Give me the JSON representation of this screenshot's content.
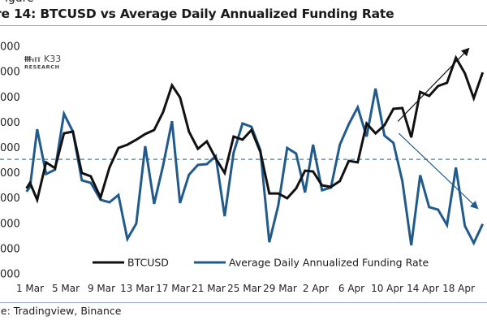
{
  "figure": {
    "top_fragment": "igure",
    "title": "re 14: BTCUSD vs Average Daily Annualized Funding Rate",
    "source": "ce: Tradingview, Binance"
  },
  "logo": {
    "name": "K33",
    "sub": "RESEARCH"
  },
  "colors": {
    "btc": "#111111",
    "funding": "#215b8c",
    "zero_line": "#4d7aa8",
    "rule": "#9aaccc"
  },
  "chart_data": {
    "type": "line",
    "title": "BTCUSD vs Average Daily Annualized Funding Rate",
    "xlabel": "",
    "ylabel": "",
    "y_axis_note": "Left axis tick labels are cropped; only trailing digits '000' visible. Values below are in gridline units (0 = lowest gridline, 9 = highest).",
    "yticks": [
      "000",
      "000",
      "000",
      "000",
      "000",
      "000",
      "000",
      "000",
      "000",
      "000"
    ],
    "ylim": [
      0,
      9
    ],
    "xlim_days": [
      -0.4,
      50.8
    ],
    "x_tick_labels": [
      "1 Mar",
      "5 Mar",
      "9 Mar",
      "13 Mar",
      "17 Mar",
      "21 Mar",
      "25 Mar",
      "29 Mar",
      "2 Apr",
      "6 Apr",
      "10 Apr",
      "14 Apr",
      "18 Apr"
    ],
    "x_tick_days": [
      0,
      4,
      8,
      12,
      16,
      20,
      24,
      28,
      32,
      36,
      40,
      44,
      48
    ],
    "funding_zero_level": 4.53,
    "grid": false,
    "legend": {
      "position": "bottom-center",
      "entries": [
        "BTCUSD",
        "Average Daily Annualized Funding Rate"
      ]
    },
    "series": [
      {
        "name": "BTCUSD",
        "x_days": [
          -0.4,
          0,
          0.8,
          1.8,
          2.8,
          3.8,
          4.8,
          5.8,
          6.8,
          7.9,
          8.9,
          9.9,
          10.9,
          11.9,
          12.9,
          13.9,
          14.9,
          15.9,
          16.8,
          17.8,
          18.8,
          19.8,
          20.8,
          21.8,
          22.8,
          23.8,
          24.8,
          25.8,
          26.8,
          27.8,
          28.8,
          29.8,
          30.8,
          31.7,
          32.7,
          33.7,
          34.7,
          35.7,
          36.7,
          37.7,
          38.7,
          39.7,
          40.7,
          41.7,
          42.7,
          43.7,
          44.7,
          45.7,
          46.7,
          47.7,
          48.7,
          49.7,
          50.7
        ],
        "values": [
          3.38,
          3.6,
          2.93,
          4.41,
          4.18,
          5.56,
          5.63,
          3.99,
          3.86,
          3.02,
          4.21,
          4.98,
          5.11,
          5.31,
          5.53,
          5.69,
          6.4,
          7.46,
          6.98,
          5.63,
          4.95,
          5.24,
          4.57,
          3.99,
          5.43,
          5.31,
          5.69,
          4.82,
          3.18,
          3.18,
          2.99,
          3.38,
          4.08,
          4.05,
          3.5,
          3.44,
          3.67,
          4.47,
          4.41,
          5.95,
          5.56,
          5.88,
          6.53,
          6.56,
          5.4,
          7.2,
          7.04,
          7.43,
          7.56,
          8.55,
          7.94,
          6.95,
          7.97
        ]
      },
      {
        "name": "Average Daily Annualized Funding Rate",
        "x_days": [
          -0.4,
          0,
          0.8,
          1.8,
          2.8,
          3.8,
          4.8,
          5.8,
          6.8,
          7.9,
          8.9,
          9.9,
          10.9,
          11.9,
          12.9,
          13.9,
          14.9,
          15.9,
          16.8,
          17.8,
          18.8,
          19.8,
          20.8,
          21.8,
          22.8,
          23.8,
          24.8,
          25.8,
          26.8,
          27.8,
          28.8,
          29.8,
          30.8,
          31.7,
          32.7,
          33.7,
          34.7,
          35.7,
          36.7,
          37.7,
          38.7,
          39.7,
          40.7,
          41.7,
          42.7,
          43.7,
          44.7,
          45.7,
          46.7,
          47.7,
          48.7,
          49.7,
          50.7
        ],
        "values": [
          3.25,
          3.44,
          5.72,
          3.95,
          4.12,
          6.33,
          5.63,
          3.7,
          3.6,
          2.93,
          2.83,
          3.12,
          1.38,
          1.99,
          5.05,
          2.77,
          4.28,
          6.04,
          2.8,
          3.92,
          4.31,
          4.34,
          4.66,
          2.28,
          4.79,
          5.95,
          5.82,
          4.89,
          1.25,
          2.7,
          4.98,
          4.76,
          3.22,
          5.11,
          3.31,
          3.41,
          5.11,
          5.92,
          6.59,
          5.43,
          7.33,
          5.47,
          5.18,
          3.67,
          1.13,
          3.9,
          2.64,
          2.54,
          1.93,
          4.21,
          1.9,
          1.22,
          1.97
        ]
      }
    ],
    "annotations": [
      {
        "type": "arrow",
        "color": "black",
        "direction": "up-right",
        "from_days": [
          41.2,
          6.03
        ],
        "to_days": [
          49.1,
          8.9
        ]
      },
      {
        "type": "arrow",
        "color": "blue",
        "direction": "down-right",
        "from_days": [
          41.3,
          5.56
        ],
        "to_days": [
          50.1,
          2.6
        ]
      }
    ]
  }
}
